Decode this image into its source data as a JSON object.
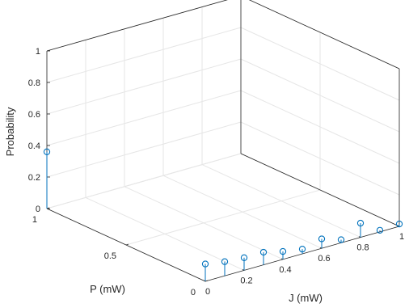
{
  "chart_data": {
    "type": "stem3",
    "title": "",
    "xlabel": "J (mW)",
    "ylabel": "P (mW)",
    "zlabel": "Probability",
    "xlim": [
      0,
      1
    ],
    "ylim": [
      0,
      1
    ],
    "zlim": [
      0,
      1
    ],
    "x_ticks": [
      {
        "v": 0,
        "label": "0"
      },
      {
        "v": 0.2,
        "label": "0.2"
      },
      {
        "v": 0.4,
        "label": "0.4"
      },
      {
        "v": 0.6,
        "label": "0.6"
      },
      {
        "v": 0.8,
        "label": "0.8"
      },
      {
        "v": 1,
        "label": "1"
      }
    ],
    "y_ticks": [
      {
        "v": 0,
        "label": "0"
      },
      {
        "v": 0.5,
        "label": "0.5"
      },
      {
        "v": 1,
        "label": "1"
      }
    ],
    "z_ticks": [
      {
        "v": 0,
        "label": "0"
      },
      {
        "v": 0.2,
        "label": "0.2"
      },
      {
        "v": 0.4,
        "label": "0.4"
      },
      {
        "v": 0.6,
        "label": "0.6"
      },
      {
        "v": 0.8,
        "label": "0.8"
      },
      {
        "v": 1,
        "label": "1"
      }
    ],
    "grid": true,
    "series_color": "#0072BD",
    "points": [
      {
        "x": 0,
        "y": 1,
        "z": 0.36
      },
      {
        "x": 0,
        "y": 0,
        "z": 0.11
      },
      {
        "x": 0.1,
        "y": 0,
        "z": 0.09
      },
      {
        "x": 0.2,
        "y": 0,
        "z": 0.08
      },
      {
        "x": 0.3,
        "y": 0,
        "z": 0.08
      },
      {
        "x": 0.4,
        "y": 0,
        "z": 0.05
      },
      {
        "x": 0.5,
        "y": 0,
        "z": 0.03
      },
      {
        "x": 0.6,
        "y": 0,
        "z": 0.06
      },
      {
        "x": 0.7,
        "y": 0,
        "z": 0.02
      },
      {
        "x": 0.8,
        "y": 0,
        "z": 0.09
      },
      {
        "x": 0.9,
        "y": 0,
        "z": 0.01
      },
      {
        "x": 1,
        "y": 0,
        "z": 0.015
      }
    ]
  }
}
